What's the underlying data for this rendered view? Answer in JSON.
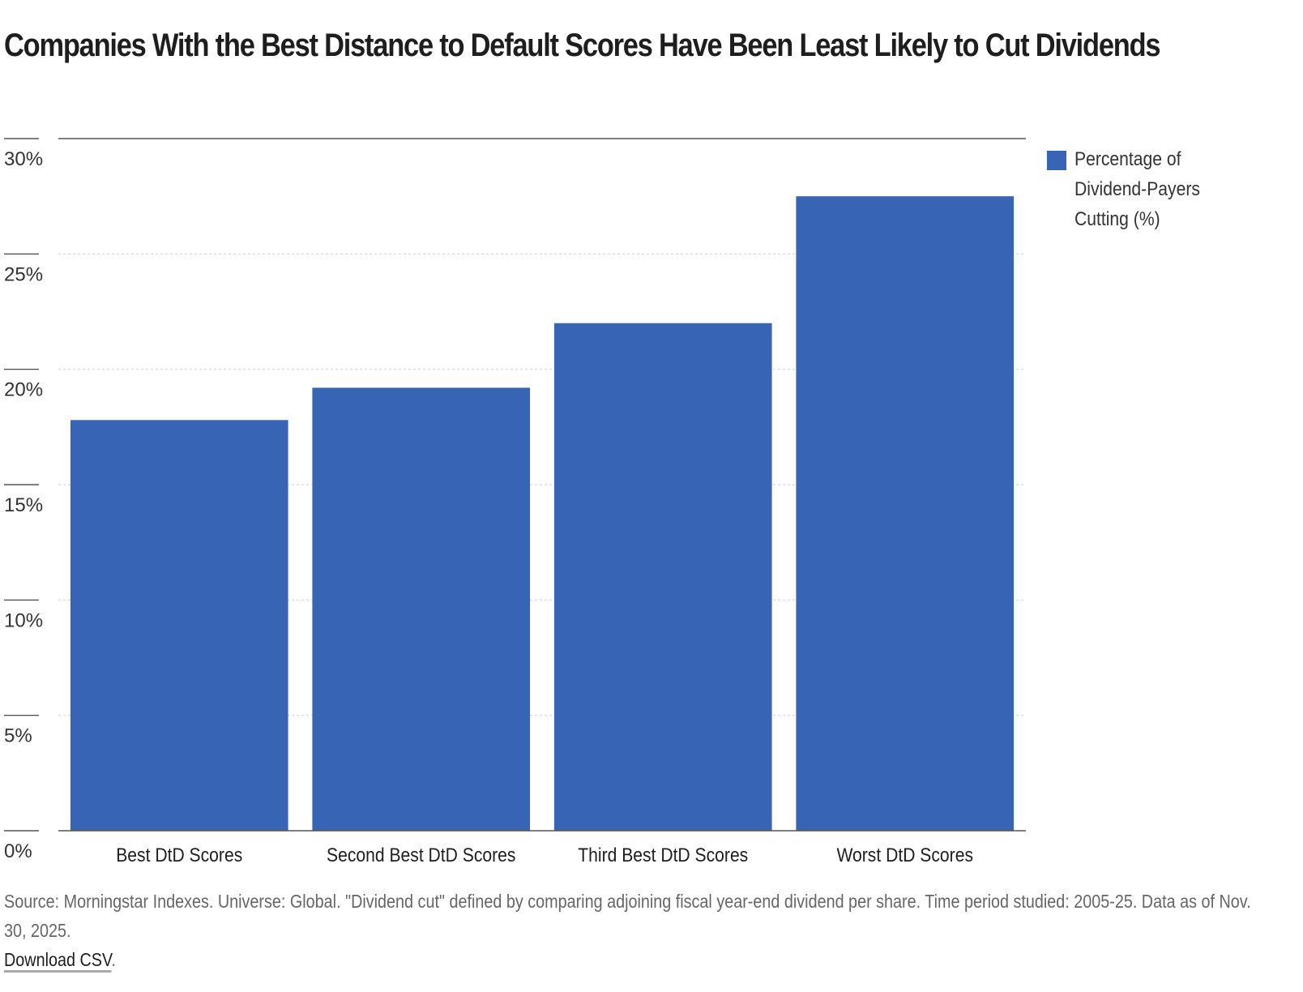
{
  "chart_data": {
    "type": "bar",
    "title": "Companies With the Best Distance to Default Scores Have Been Least Likely to Cut Dividends",
    "categories": [
      "Best DtD Scores",
      "Second Best DtD Scores",
      "Third Best DtD Scores",
      "Worst DtD Scores"
    ],
    "series": [
      {
        "name": "Percentage of Dividend-Payers Cutting (%)",
        "values": [
          17.8,
          19.2,
          22.0,
          27.5
        ],
        "color": "#3764b4"
      }
    ],
    "xlabel": "",
    "ylabel": "",
    "ylim": [
      0,
      30
    ],
    "yticks": [
      0,
      5,
      10,
      15,
      20,
      25,
      30
    ],
    "ytick_labels": [
      "0%",
      "5%",
      "10%",
      "15%",
      "20%",
      "25%",
      "30%"
    ],
    "grid": true,
    "legend_position": "right"
  },
  "footnote": {
    "source": "Source: Morningstar Indexes. Universe: Global. \"Dividend cut\" defined by comparing adjoining fiscal year-end dividend per share. Time period studied: 2005-25. Data as of Nov. 30, 2025.",
    "download_label": "Download CSV",
    "download_suffix": "."
  }
}
